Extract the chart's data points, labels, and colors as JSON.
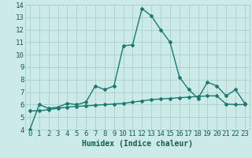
{
  "xlabel": "Humidex (Indice chaleur)",
  "background_color": "#cceae7",
  "plot_bg_color": "#cceae7",
  "grid_color": "#aacfcc",
  "line_color": "#1a7a6e",
  "x_values": [
    0,
    1,
    2,
    3,
    4,
    5,
    6,
    7,
    8,
    9,
    10,
    11,
    12,
    13,
    14,
    15,
    16,
    17,
    18,
    19,
    20,
    21,
    22,
    23
  ],
  "y1_values": [
    4.0,
    6.0,
    5.7,
    5.8,
    6.1,
    6.0,
    6.2,
    7.5,
    7.2,
    7.5,
    10.7,
    10.8,
    13.7,
    13.1,
    12.0,
    11.0,
    8.2,
    7.2,
    6.5,
    7.8,
    7.5,
    6.7,
    7.2,
    6.1
  ],
  "y2_values": [
    5.5,
    5.5,
    5.6,
    5.7,
    5.8,
    5.85,
    5.9,
    5.95,
    6.0,
    6.05,
    6.1,
    6.2,
    6.3,
    6.4,
    6.45,
    6.5,
    6.55,
    6.6,
    6.65,
    6.7,
    6.7,
    6.05,
    6.0,
    6.0
  ],
  "ylim": [
    4,
    14
  ],
  "xlim": [
    -0.5,
    23.5
  ],
  "yticks": [
    4,
    5,
    6,
    7,
    8,
    9,
    10,
    11,
    12,
    13,
    14
  ],
  "xticks": [
    0,
    1,
    2,
    3,
    4,
    5,
    6,
    7,
    8,
    9,
    10,
    11,
    12,
    13,
    14,
    15,
    16,
    17,
    18,
    19,
    20,
    21,
    22,
    23
  ],
  "marker": "D",
  "marker_size": 2.0,
  "line_width": 1.0,
  "xlabel_fontsize": 7,
  "tick_fontsize": 6.5,
  "tick_color": "#1a5c55"
}
